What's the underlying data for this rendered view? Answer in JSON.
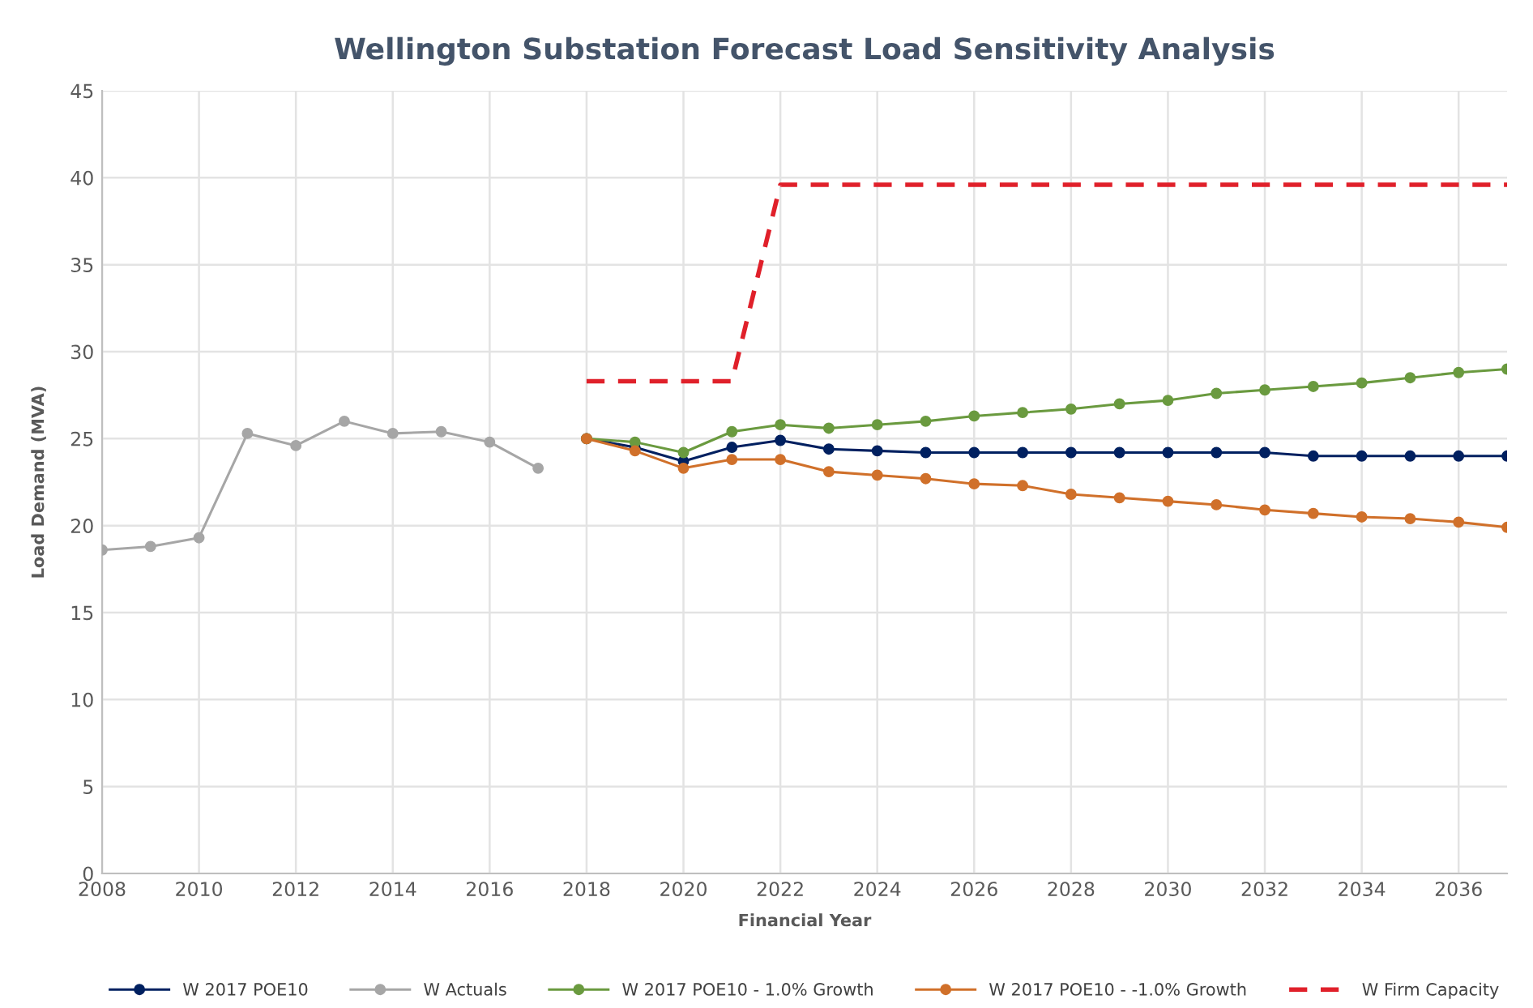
{
  "chart_data": {
    "type": "line",
    "title": "Wellington Substation Forecast Load Sensitivity Analysis",
    "xlabel": "Financial Year",
    "ylabel": "Load Demand (MVA)",
    "xlim": [
      2008,
      2037
    ],
    "xticks": [
      2008,
      2010,
      2012,
      2014,
      2016,
      2018,
      2020,
      2022,
      2024,
      2026,
      2028,
      2030,
      2032,
      2034,
      2036
    ],
    "ylim": [
      0,
      45
    ],
    "yticks": [
      0,
      5,
      10,
      15,
      20,
      25,
      30,
      35,
      40,
      45
    ],
    "grid": true,
    "legend": "bottom",
    "marker": "circle",
    "line_style": "solid",
    "series": [
      {
        "name": "W 2017 POE10",
        "color": "#002060",
        "x": [
          2018,
          2019,
          2020,
          2021,
          2022,
          2023,
          2024,
          2025,
          2026,
          2027,
          2028,
          2029,
          2030,
          2031,
          2032,
          2033,
          2034,
          2035,
          2036,
          2037
        ],
        "values": [
          25.0,
          24.5,
          23.7,
          24.5,
          24.9,
          24.4,
          24.3,
          24.2,
          24.2,
          24.2,
          24.2,
          24.2,
          24.2,
          24.2,
          24.2,
          24.0,
          24.0,
          24.0,
          24.0,
          24.0
        ]
      },
      {
        "name": "W Actuals",
        "color": "#a6a6a6",
        "x": [
          2008,
          2009,
          2010,
          2011,
          2012,
          2013,
          2014,
          2015,
          2016,
          2017
        ],
        "values": [
          18.6,
          18.8,
          19.3,
          25.3,
          24.6,
          26.0,
          25.3,
          25.4,
          24.8,
          23.3
        ]
      },
      {
        "name": "W 2017 POE10 - 1.0% Growth",
        "color": "#6a9a3f",
        "x": [
          2018,
          2019,
          2020,
          2021,
          2022,
          2023,
          2024,
          2025,
          2026,
          2027,
          2028,
          2029,
          2030,
          2031,
          2032,
          2033,
          2034,
          2035,
          2036,
          2037
        ],
        "values": [
          25.0,
          24.8,
          24.2,
          25.4,
          25.8,
          25.6,
          25.8,
          26.0,
          26.3,
          26.5,
          26.7,
          27.0,
          27.2,
          27.6,
          27.8,
          28.0,
          28.2,
          28.5,
          28.8,
          29.0
        ]
      },
      {
        "name": "W 2017 POE10 - -1.0% Growth",
        "color": "#d0702a",
        "x": [
          2018,
          2019,
          2020,
          2021,
          2022,
          2023,
          2024,
          2025,
          2026,
          2027,
          2028,
          2029,
          2030,
          2031,
          2032,
          2033,
          2034,
          2035,
          2036,
          2037
        ],
        "values": [
          25.0,
          24.3,
          23.3,
          23.8,
          23.8,
          23.1,
          22.9,
          22.7,
          22.4,
          22.3,
          21.8,
          21.6,
          21.4,
          21.2,
          20.9,
          20.7,
          20.5,
          20.4,
          20.2,
          19.9
        ]
      },
      {
        "name": "W Firm Capacity",
        "color": "#e0202a",
        "marker": "none",
        "line_style": "dashed",
        "x": [
          2018,
          2019,
          2020,
          2021,
          2022,
          2023,
          2024,
          2025,
          2026,
          2027,
          2028,
          2029,
          2030,
          2031,
          2032,
          2033,
          2034,
          2035,
          2036,
          2037
        ],
        "values": [
          28.3,
          28.3,
          28.3,
          28.3,
          39.6,
          39.6,
          39.6,
          39.6,
          39.6,
          39.6,
          39.6,
          39.6,
          39.6,
          39.6,
          39.6,
          39.6,
          39.6,
          39.6,
          39.6,
          39.6
        ]
      }
    ]
  }
}
